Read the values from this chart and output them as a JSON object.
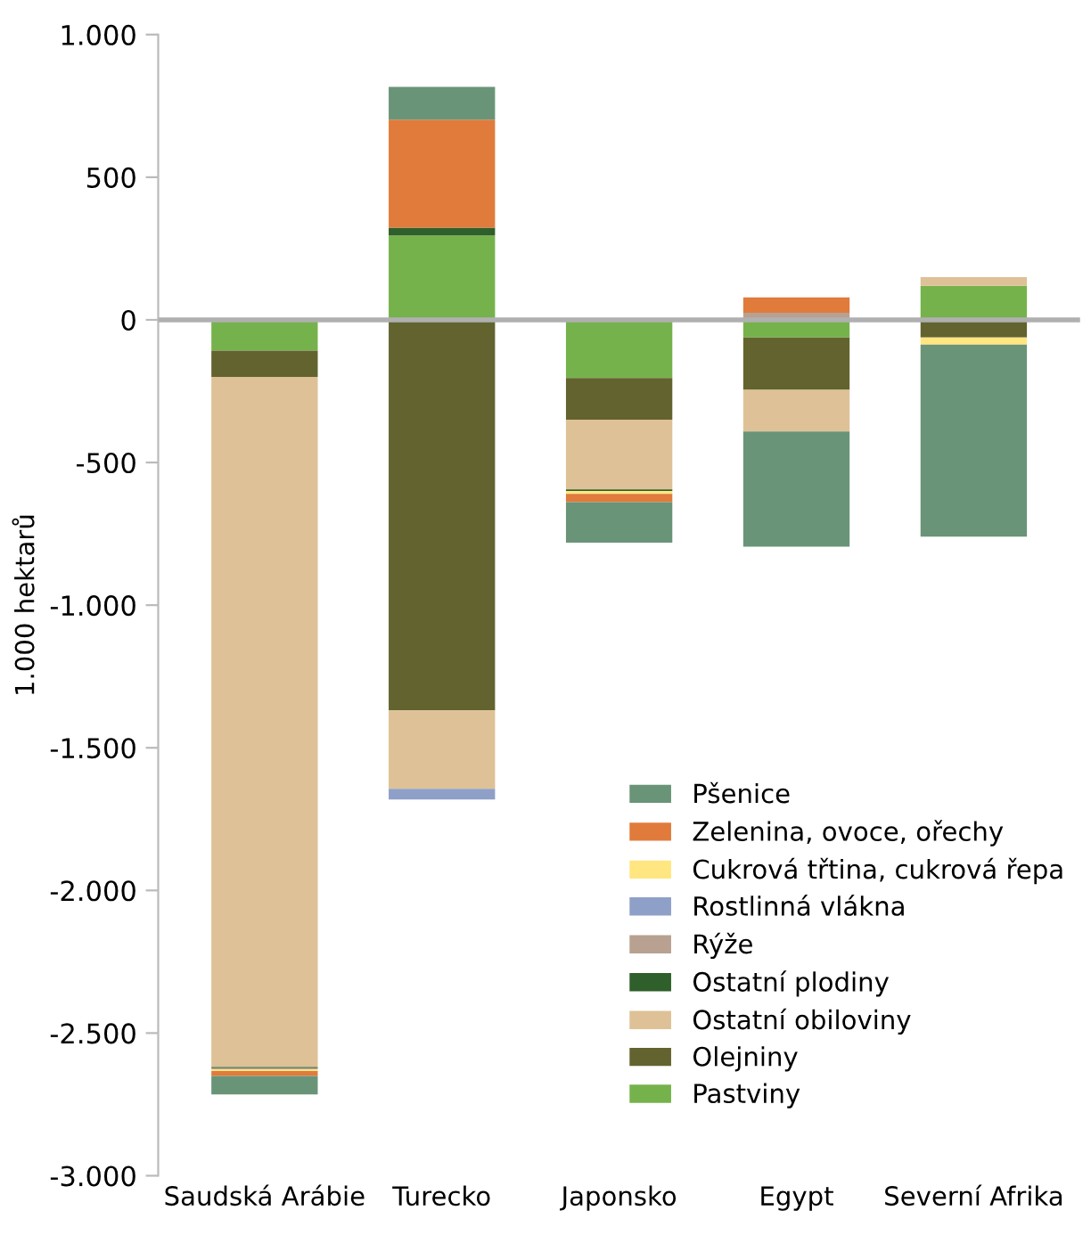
{
  "chart_data": {
    "type": "bar",
    "stacked": true,
    "ylabel": "1.000 hektarů",
    "categories": [
      "Saudská Arábie",
      "Turecko",
      "Japonsko",
      "Egypt",
      "Severní Afrika"
    ],
    "ylim": [
      -3000,
      1000
    ],
    "yticks": [
      {
        "value": -3000,
        "label": "-3.000"
      },
      {
        "value": -2500,
        "label": "-2.500"
      },
      {
        "value": -2000,
        "label": "-2.000"
      },
      {
        "value": -1500,
        "label": "-1.500"
      },
      {
        "value": -1000,
        "label": "-1.000"
      },
      -500,
      0,
      500,
      {
        "value": 1000,
        "label": "1.000"
      }
    ],
    "grid": false,
    "legend": "bottom right",
    "ref_lines": [
      {
        "axis": "y",
        "value": 0,
        "color": "#b0b0b0"
      }
    ],
    "series": [
      {
        "name": "Pastviny",
        "color": "#76b24b",
        "values": [
          -108,
          296,
          -204,
          -62,
          119
        ]
      },
      {
        "name": "Olejniny",
        "color": "#636330",
        "values": [
          -92,
          -1369,
          -146,
          -183,
          -62
        ]
      },
      {
        "name": "Ostatní obiloviny",
        "color": "#dec196",
        "values": [
          -2419,
          -275,
          -244,
          -146,
          31
        ]
      },
      {
        "name": "Ostatní plodiny",
        "color": "#2f5f2a",
        "values": [
          -4,
          27,
          -6,
          null,
          null
        ]
      },
      {
        "name": "Rýže",
        "color": "#b8a190",
        "values": [
          -5,
          null,
          null,
          25,
          null
        ]
      },
      {
        "name": "Rostlinná vlákna",
        "color": "#8fa0c8",
        "values": [
          null,
          -37,
          null,
          null,
          null
        ]
      },
      {
        "name": "Cukrová třtina, cukrová řepa",
        "color": "#ffe680",
        "values": [
          -5,
          null,
          -10,
          null,
          -25
        ]
      },
      {
        "name": "Zelenina, ovoce, ořechy",
        "color": "#e07b3c",
        "values": [
          -17,
          379,
          -29,
          54,
          null
        ]
      },
      {
        "name": "Pšenice",
        "color": "#6a9478",
        "values": [
          -65,
          115,
          -142,
          -404,
          -673
        ]
      }
    ]
  }
}
